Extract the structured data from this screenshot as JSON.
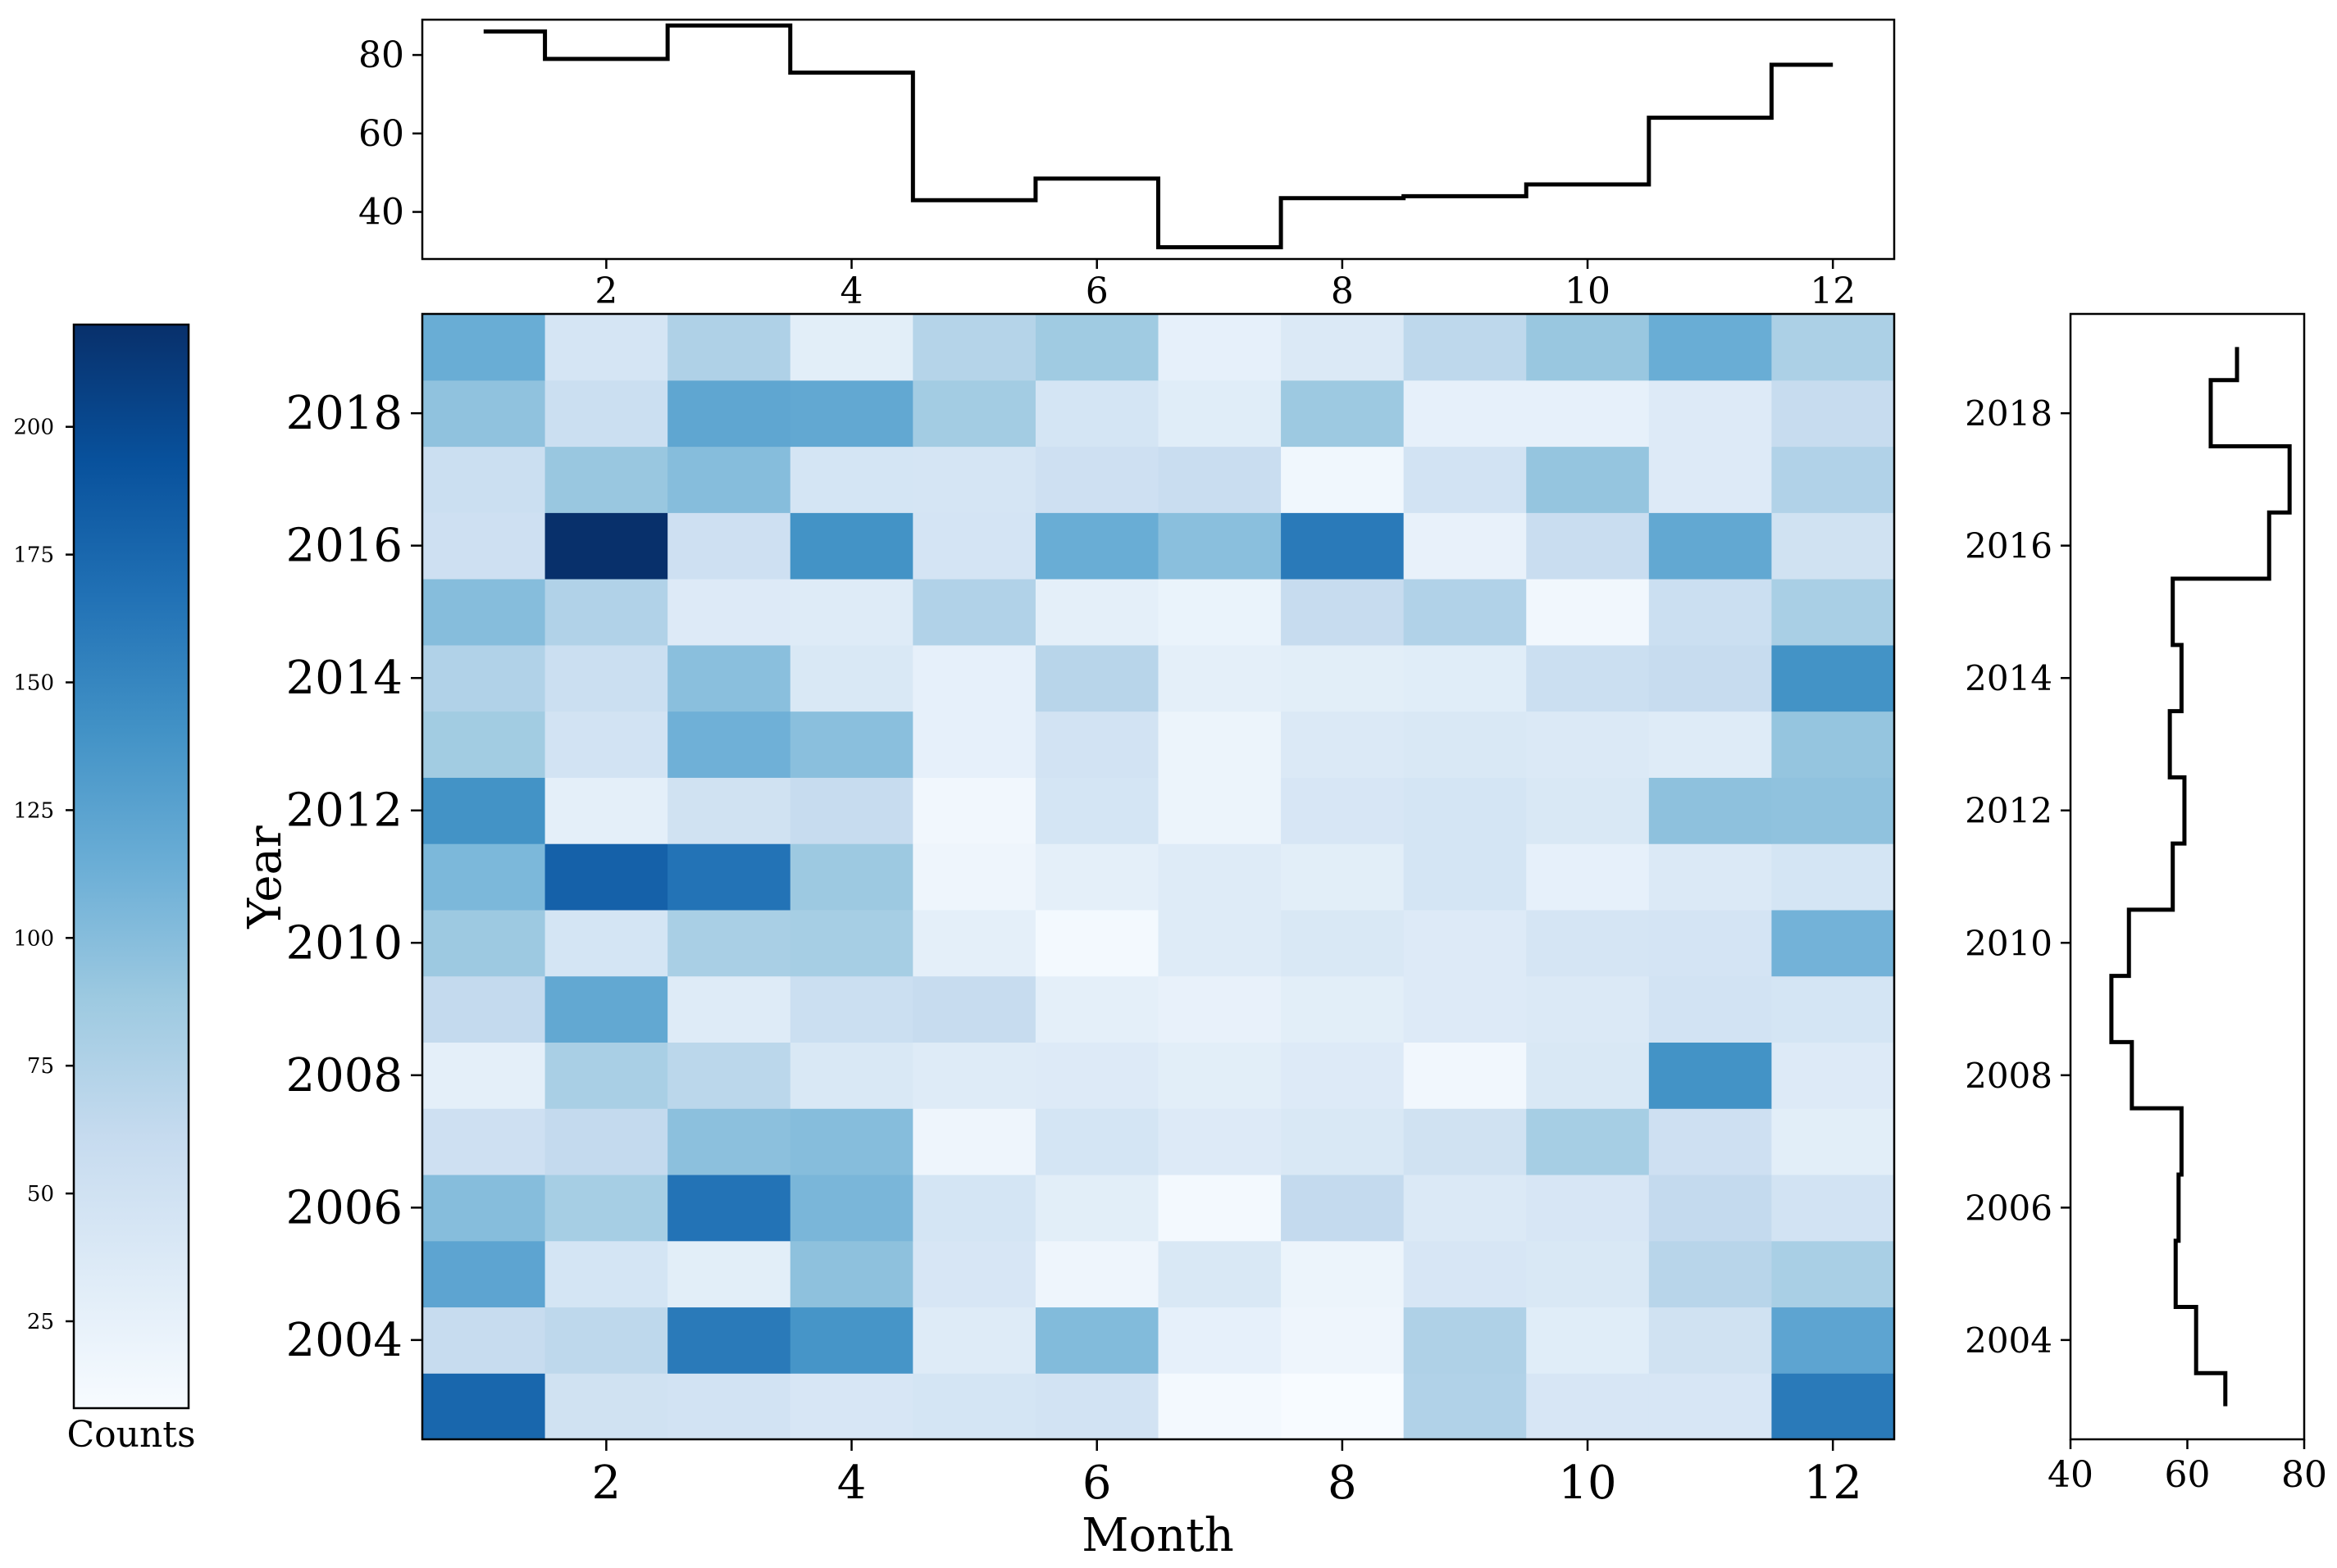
{
  "chart_data": [
    {
      "name": "heatmap",
      "type": "heatmap",
      "xlabel": "Month",
      "ylabel": "Year",
      "x": [
        1,
        2,
        3,
        4,
        5,
        6,
        7,
        8,
        9,
        10,
        11,
        12
      ],
      "y": [
        2003,
        2004,
        2005,
        2006,
        2007,
        2008,
        2009,
        2010,
        2011,
        2012,
        2013,
        2014,
        2015,
        2016,
        2017,
        2018,
        2019
      ],
      "xticks": [
        "2",
        "4",
        "6",
        "8",
        "10",
        "12"
      ],
      "yticks": [
        "2004",
        "2006",
        "2008",
        "2010",
        "2012",
        "2014",
        "2016",
        "2018"
      ],
      "colormap": "Blues",
      "vmin": 8,
      "vmax": 220,
      "values": [
        [
          175,
          50,
          48,
          42,
          45,
          48,
          12,
          8,
          75,
          42,
          42,
          160
        ],
        [
          60,
          66,
          160,
          138,
          35,
          102,
          26,
          18,
          76,
          32,
          50,
          123
        ],
        [
          123,
          45,
          30,
          96,
          42,
          18,
          40,
          20,
          42,
          40,
          70,
          80
        ],
        [
          100,
          82,
          165,
          106,
          45,
          30,
          12,
          62,
          38,
          42,
          62,
          48
        ],
        [
          52,
          62,
          97,
          100,
          18,
          45,
          36,
          40,
          50,
          82,
          52,
          30
        ],
        [
          28,
          80,
          68,
          40,
          34,
          36,
          30,
          36,
          14,
          40,
          140,
          36
        ],
        [
          62,
          120,
          34,
          55,
          60,
          28,
          24,
          30,
          36,
          38,
          48,
          45
        ],
        [
          88,
          45,
          80,
          82,
          28,
          12,
          34,
          40,
          36,
          44,
          46,
          110
        ],
        [
          105,
          180,
          165,
          88,
          18,
          28,
          34,
          30,
          45,
          26,
          38,
          45
        ],
        [
          140,
          28,
          50,
          60,
          14,
          45,
          20,
          42,
          45,
          40,
          96,
          95
        ],
        [
          85,
          48,
          112,
          98,
          26,
          48,
          20,
          38,
          40,
          38,
          34,
          92
        ],
        [
          75,
          55,
          98,
          40,
          26,
          70,
          28,
          30,
          32,
          55,
          60,
          140
        ],
        [
          100,
          75,
          36,
          34,
          75,
          28,
          22,
          60,
          75,
          14,
          55,
          80
        ],
        [
          52,
          220,
          52,
          140,
          46,
          115,
          98,
          160,
          24,
          58,
          120,
          50
        ],
        [
          55,
          90,
          100,
          45,
          44,
          52,
          58,
          15,
          48,
          92,
          36,
          75
        ],
        [
          95,
          55,
          122,
          120,
          84,
          45,
          32,
          88,
          26,
          26,
          36,
          60
        ],
        [
          115,
          44,
          76,
          30,
          72,
          86,
          26,
          38,
          66,
          90,
          115,
          78
        ]
      ]
    },
    {
      "name": "top-marginal",
      "type": "line",
      "drawstyle": "steps-mid",
      "x": [
        1,
        2,
        3,
        4,
        5,
        6,
        7,
        8,
        9,
        10,
        11,
        12
      ],
      "values": [
        86,
        79,
        87.5,
        75.5,
        43,
        48.5,
        31,
        43.5,
        44,
        47,
        64,
        77.5
      ],
      "xlim": [
        0.5,
        12.5
      ],
      "ylim": [
        28,
        89
      ],
      "xticks": [
        "2",
        "4",
        "6",
        "8",
        "10",
        "12"
      ],
      "yticks": [
        "40",
        "60",
        "80"
      ]
    },
    {
      "name": "right-marginal",
      "type": "line",
      "drawstyle": "steps-mid",
      "orientation": "vertical",
      "y": [
        2003,
        2004,
        2005,
        2006,
        2007,
        2008,
        2009,
        2010,
        2011,
        2012,
        2013,
        2014,
        2015,
        2016,
        2017,
        2018,
        2019
      ],
      "values": [
        66.5,
        61.5,
        58,
        58.5,
        59,
        50.5,
        47,
        50,
        57.5,
        59.5,
        57,
        59,
        57.5,
        74,
        77.5,
        64,
        68.5
      ],
      "xlim": [
        40,
        80
      ],
      "xticks": [
        "40",
        "60",
        "80"
      ],
      "yticks": [
        "2004",
        "2006",
        "2008",
        "2010",
        "2012",
        "2014",
        "2016",
        "2018"
      ]
    },
    {
      "name": "colorbar",
      "type": "colorbar",
      "label": "Counts",
      "range": [
        8,
        220
      ],
      "ticks": [
        "25",
        "50",
        "75",
        "100",
        "125",
        "150",
        "175",
        "200"
      ]
    }
  ]
}
